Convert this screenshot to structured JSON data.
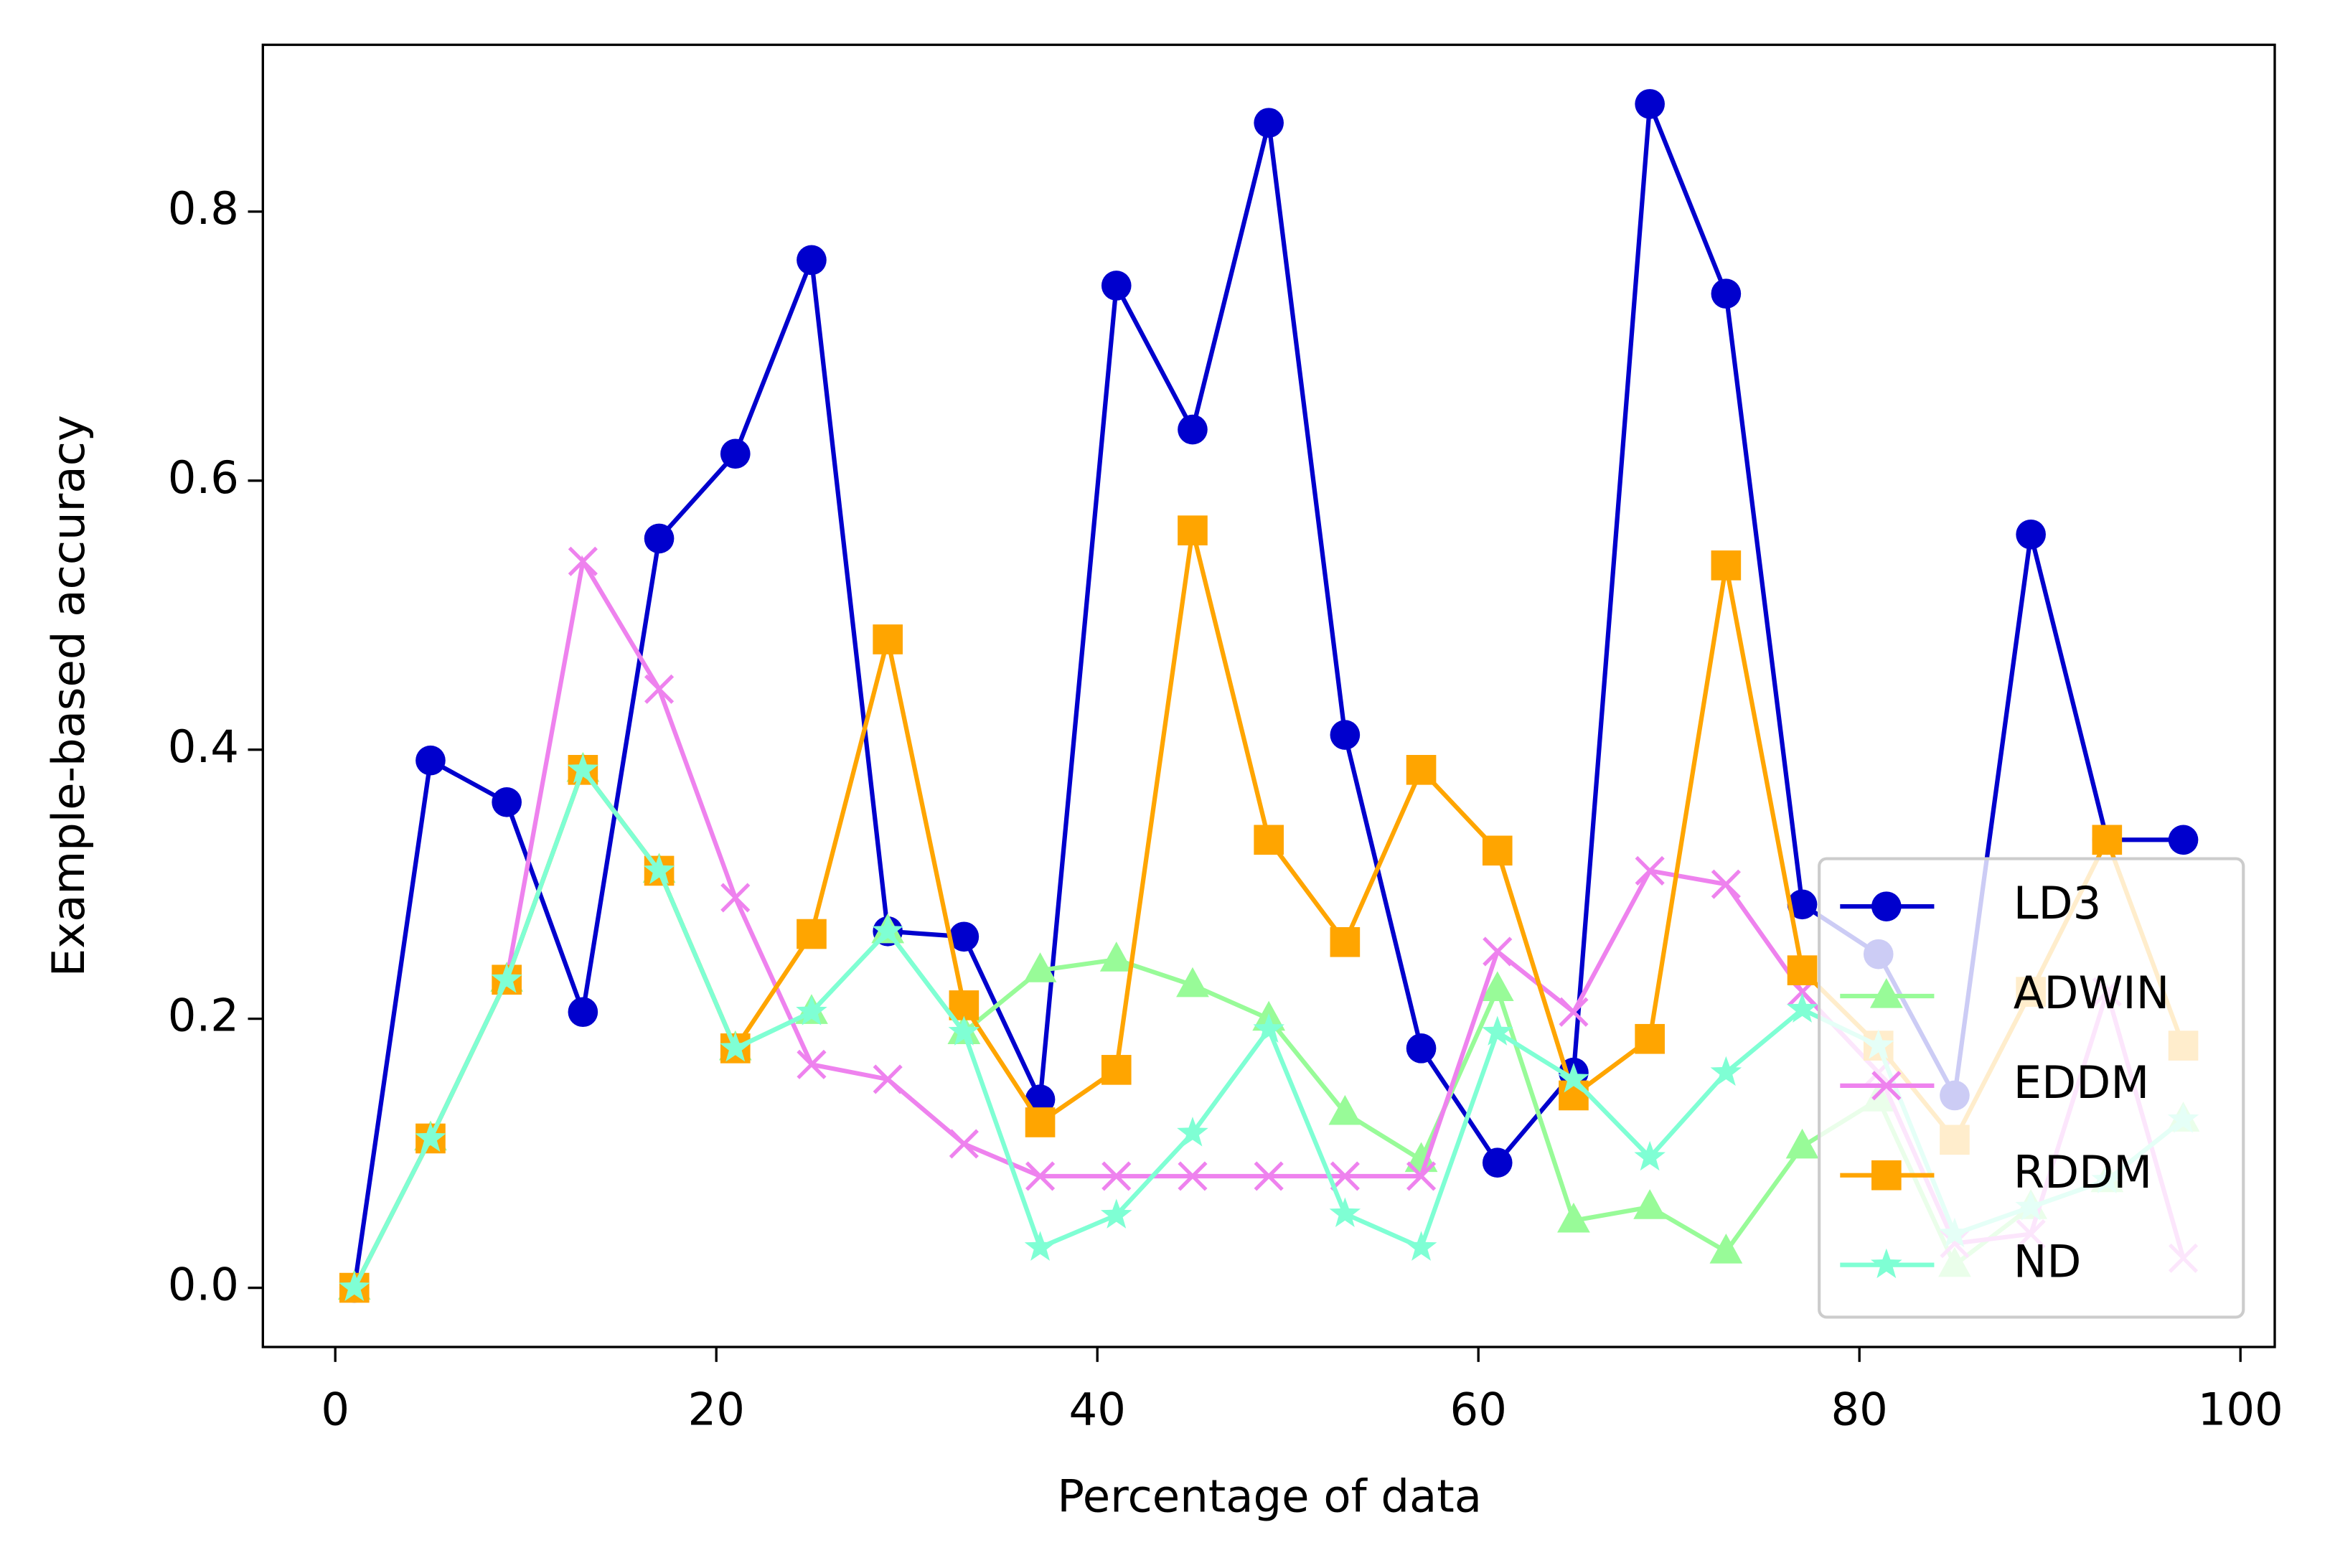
{
  "chart_data": {
    "type": "line",
    "xlabel": "Percentage of data",
    "ylabel": "Example-based accuracy",
    "x": [
      1,
      5,
      9,
      13,
      17,
      21,
      25,
      29,
      33,
      37,
      41,
      45,
      49,
      53,
      57,
      61,
      65,
      69,
      73,
      77,
      81,
      85,
      89,
      93,
      97
    ],
    "series": [
      {
        "name": "LD3",
        "color": "#0000cd",
        "marker": "circle",
        "values": [
          0.0,
          0.392,
          0.361,
          0.205,
          0.557,
          0.62,
          0.764,
          0.265,
          0.261,
          0.14,
          0.745,
          0.638,
          0.866,
          0.411,
          0.178,
          0.093,
          0.16,
          0.88,
          0.739,
          0.285,
          0.248,
          0.143,
          0.56,
          0.333,
          0.333
        ]
      },
      {
        "name": "ADWIN",
        "color": "#98fb98",
        "marker": "triangle",
        "values": [
          0.0,
          0.111,
          0.229,
          0.385,
          0.31,
          0.178,
          0.205,
          0.265,
          0.19,
          0.236,
          0.244,
          0.225,
          0.2,
          0.13,
          0.095,
          0.222,
          0.05,
          0.06,
          0.027,
          0.105,
          0.14,
          0.017,
          0.06,
          0.08,
          0.125
        ]
      },
      {
        "name": "EDDM",
        "color": "#ee82ee",
        "marker": "x",
        "values": [
          0.0,
          0.111,
          0.229,
          0.54,
          0.445,
          0.29,
          0.166,
          0.155,
          0.107,
          0.083,
          0.083,
          0.083,
          0.083,
          0.083,
          0.083,
          0.25,
          0.205,
          0.31,
          0.3,
          0.22,
          0.16,
          0.033,
          0.04,
          0.22,
          0.022
        ]
      },
      {
        "name": "RDDM",
        "color": "#ffa500",
        "marker": "square",
        "values": [
          0.0,
          0.111,
          0.229,
          0.385,
          0.31,
          0.178,
          0.263,
          0.482,
          0.21,
          0.123,
          0.162,
          0.563,
          0.333,
          0.257,
          0.385,
          0.325,
          0.143,
          0.185,
          0.537,
          0.236,
          0.18,
          0.11,
          0.22,
          0.333,
          0.18
        ]
      },
      {
        "name": "ND",
        "color": "#7fffd4",
        "marker": "star",
        "values": [
          0.0,
          0.111,
          0.229,
          0.385,
          0.31,
          0.178,
          0.205,
          0.265,
          0.19,
          0.03,
          0.054,
          0.115,
          0.192,
          0.055,
          0.03,
          0.19,
          0.155,
          0.097,
          0.16,
          0.207,
          0.18,
          0.04,
          0.06,
          0.08,
          0.125
        ]
      }
    ],
    "xlim": [
      -3.8,
      101.8
    ],
    "ylim": [
      -0.044,
      0.924
    ],
    "xticks": [
      0,
      20,
      40,
      60,
      80,
      100
    ],
    "yticks": [
      {
        "value": 0,
        "label": "0.0"
      },
      0.2,
      0.4,
      0.6,
      0.8
    ],
    "grid": false,
    "legend": "lower right"
  }
}
